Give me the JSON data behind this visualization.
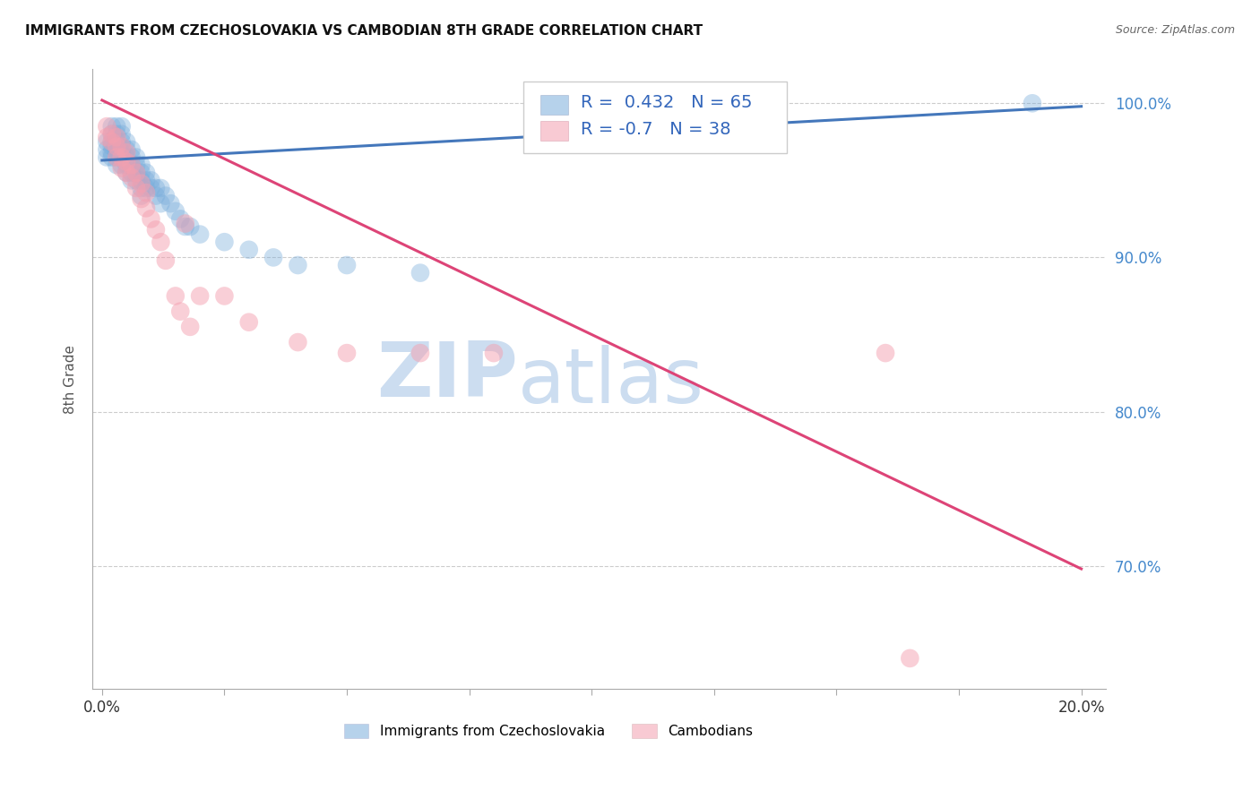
{
  "title": "IMMIGRANTS FROM CZECHOSLOVAKIA VS CAMBODIAN 8TH GRADE CORRELATION CHART",
  "source": "Source: ZipAtlas.com",
  "ylabel": "8th Grade",
  "blue_R": 0.432,
  "blue_N": 65,
  "pink_R": -0.7,
  "pink_N": 38,
  "blue_color": "#7aaddb",
  "pink_color": "#f4a0b0",
  "blue_line_color": "#4477bb",
  "pink_line_color": "#dd4477",
  "watermark_zip": "ZIP",
  "watermark_atlas": "atlas",
  "watermark_color": "#ccddf0",
  "blue_scatter_x": [
    0.001,
    0.001,
    0.001,
    0.002,
    0.002,
    0.002,
    0.002,
    0.002,
    0.002,
    0.003,
    0.003,
    0.003,
    0.003,
    0.003,
    0.003,
    0.003,
    0.004,
    0.004,
    0.004,
    0.004,
    0.004,
    0.004,
    0.004,
    0.005,
    0.005,
    0.005,
    0.005,
    0.005,
    0.006,
    0.006,
    0.006,
    0.006,
    0.006,
    0.007,
    0.007,
    0.007,
    0.007,
    0.008,
    0.008,
    0.008,
    0.008,
    0.008,
    0.009,
    0.009,
    0.009,
    0.01,
    0.01,
    0.011,
    0.011,
    0.012,
    0.012,
    0.013,
    0.014,
    0.015,
    0.016,
    0.017,
    0.018,
    0.02,
    0.025,
    0.03,
    0.035,
    0.04,
    0.05,
    0.065,
    0.19
  ],
  "blue_scatter_y": [
    0.975,
    0.97,
    0.965,
    0.985,
    0.98,
    0.975,
    0.972,
    0.968,
    0.965,
    0.985,
    0.98,
    0.975,
    0.972,
    0.968,
    0.965,
    0.96,
    0.985,
    0.98,
    0.975,
    0.972,
    0.968,
    0.965,
    0.96,
    0.975,
    0.97,
    0.965,
    0.96,
    0.955,
    0.97,
    0.965,
    0.96,
    0.955,
    0.95,
    0.965,
    0.96,
    0.955,
    0.95,
    0.96,
    0.955,
    0.95,
    0.945,
    0.94,
    0.955,
    0.95,
    0.945,
    0.95,
    0.945,
    0.945,
    0.94,
    0.945,
    0.935,
    0.94,
    0.935,
    0.93,
    0.925,
    0.92,
    0.92,
    0.915,
    0.91,
    0.905,
    0.9,
    0.895,
    0.895,
    0.89,
    1.0
  ],
  "pink_scatter_x": [
    0.001,
    0.001,
    0.002,
    0.002,
    0.003,
    0.003,
    0.003,
    0.004,
    0.004,
    0.004,
    0.005,
    0.005,
    0.005,
    0.006,
    0.006,
    0.007,
    0.007,
    0.008,
    0.008,
    0.009,
    0.009,
    0.01,
    0.011,
    0.012,
    0.013,
    0.015,
    0.016,
    0.017,
    0.018,
    0.02,
    0.025,
    0.03,
    0.04,
    0.05,
    0.065,
    0.08,
    0.16,
    0.165
  ],
  "pink_scatter_y": [
    0.985,
    0.978,
    0.98,
    0.975,
    0.978,
    0.972,
    0.965,
    0.972,
    0.965,
    0.958,
    0.968,
    0.962,
    0.955,
    0.96,
    0.952,
    0.955,
    0.945,
    0.948,
    0.938,
    0.942,
    0.932,
    0.925,
    0.918,
    0.91,
    0.898,
    0.875,
    0.865,
    0.922,
    0.855,
    0.875,
    0.875,
    0.858,
    0.845,
    0.838,
    0.838,
    0.838,
    0.838,
    0.64
  ],
  "blue_line_x": [
    0.0,
    0.2
  ],
  "blue_line_y": [
    0.963,
    0.998
  ],
  "pink_line_x": [
    0.0,
    0.2
  ],
  "pink_line_y": [
    1.002,
    0.698
  ],
  "xmin": -0.002,
  "xmax": 0.205,
  "ymin": 0.62,
  "ymax": 1.022,
  "yticks": [
    0.7,
    0.8,
    0.9,
    1.0
  ],
  "ytick_labels": [
    "70.0%",
    "80.0%",
    "90.0%",
    "100.0%"
  ],
  "xticks": [
    0.0,
    0.025,
    0.05,
    0.075,
    0.1,
    0.125,
    0.15,
    0.175,
    0.2
  ],
  "xtick_left_label": "0.0%",
  "xtick_right_label": "20.0%",
  "legend_label1": "Immigrants from Czechoslovakia",
  "legend_label2": "Cambodians"
}
